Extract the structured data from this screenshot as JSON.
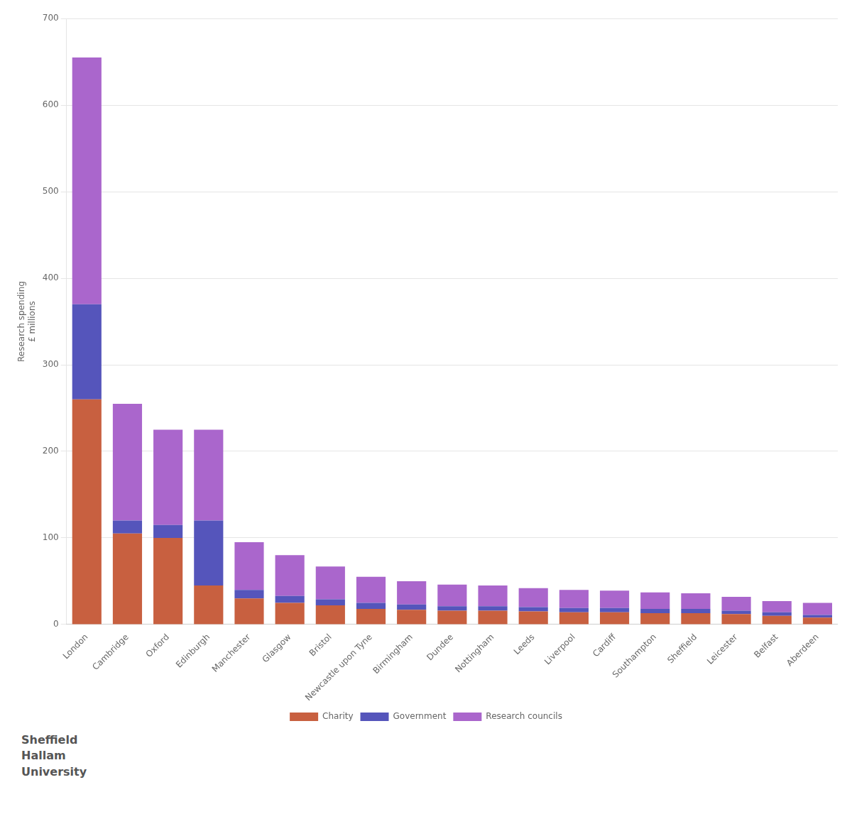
{
  "chart_data": {
    "type": "bar",
    "categories": [
      "London",
      "Cambridge",
      "Oxford",
      "Edinburgh",
      "Manchester",
      "Glasgow",
      "Bristol",
      "Newcastle upon Tyne",
      "Birmingham",
      "Dundee",
      "Nottingham",
      "Leeds",
      "Liverpool",
      "Cardiff",
      "Southampton",
      "Sheffield",
      "Leicester",
      "Belfast",
      "Aberdeen"
    ],
    "series": [
      {
        "name": "Charity",
        "color": "#c86040",
        "values": [
          260,
          105,
          100,
          45,
          30,
          25,
          22,
          18,
          17,
          16,
          16,
          15,
          14,
          14,
          13,
          13,
          12,
          10,
          8
        ]
      },
      {
        "name": "Government",
        "color": "#5555bb",
        "values": [
          110,
          15,
          15,
          75,
          10,
          8,
          7,
          7,
          6,
          5,
          5,
          5,
          5,
          5,
          5,
          5,
          4,
          4,
          3
        ]
      },
      {
        "name": "Research councils",
        "color": "#aa66cc",
        "values": [
          285,
          135,
          110,
          105,
          55,
          47,
          38,
          30,
          27,
          25,
          24,
          22,
          21,
          20,
          19,
          18,
          16,
          13,
          14
        ]
      }
    ],
    "stacked": true,
    "ylabel": "Research spending\n£ millions",
    "ylim": [
      0,
      700
    ],
    "yticks": [
      0,
      100,
      200,
      300,
      400,
      500,
      600,
      700
    ],
    "grid": true,
    "legend": "bottom",
    "annotations": [
      "Sheffield\nHallam\nUniversity"
    ]
  }
}
